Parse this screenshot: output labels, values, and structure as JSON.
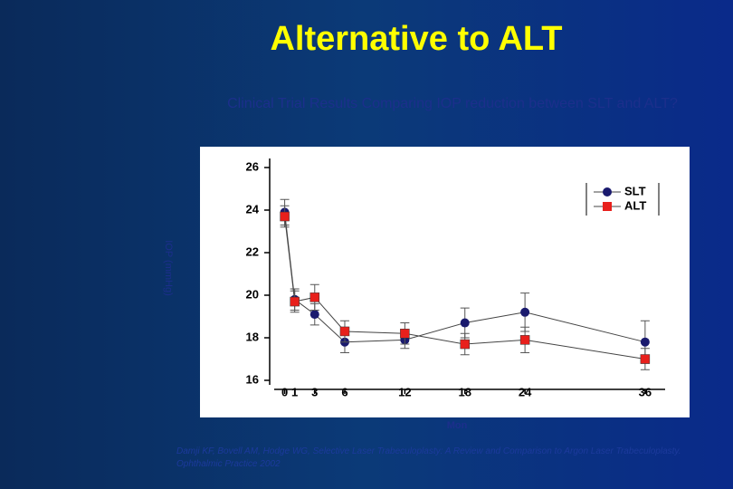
{
  "title": "Alternative to ALT",
  "chart_data": {
    "type": "line",
    "title": "Clinical Trial Results Comparing IOP reduction between SLT and ALT?",
    "x_label": "Mon",
    "y_label": "IOP (mmHg)",
    "x": [
      0,
      1,
      3,
      6,
      12,
      18,
      24,
      36
    ],
    "series": [
      {
        "name": "SLT",
        "color": "#1a1a6e",
        "marker": "circle",
        "values": [
          23.9,
          19.8,
          19.1,
          17.8,
          17.9,
          18.7,
          19.2,
          17.8
        ],
        "errors": [
          0.6,
          0.5,
          0.5,
          0.5,
          0.4,
          0.7,
          0.9,
          1.0
        ]
      },
      {
        "name": "ALT",
        "color": "#e8201c",
        "marker": "square",
        "values": [
          23.7,
          19.7,
          19.9,
          18.3,
          18.2,
          17.7,
          17.9,
          17.0
        ],
        "errors": [
          0.5,
          0.5,
          0.6,
          0.5,
          0.5,
          0.5,
          0.6,
          0.5
        ]
      }
    ],
    "xlim": [
      -1.5,
      38
    ],
    "xticks": [
      0,
      1,
      3,
      6,
      12,
      18,
      24,
      36
    ],
    "ylim": [
      16,
      26
    ],
    "yticks": [
      16,
      18,
      20,
      22,
      24,
      26
    ],
    "legend": "upper right"
  },
  "footnote": "Damji KF, Bovell AM, Hodge WG, Selective Laser Trabeculoplasty: A Review and Comparison to Argon Laser Trabeculoplasty. Ophthalmic Practice 2002"
}
